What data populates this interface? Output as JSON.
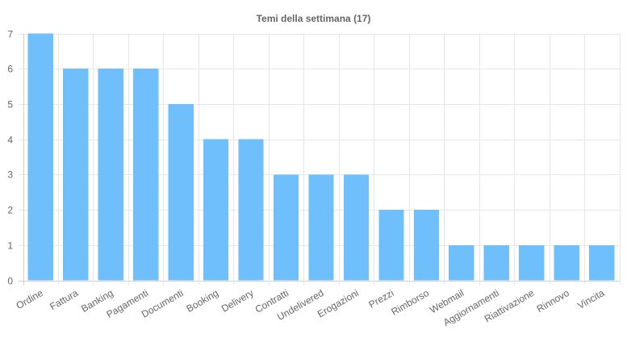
{
  "chart_data": {
    "type": "bar",
    "title": "Temi della settimana (17)",
    "xlabel": "",
    "ylabel": "",
    "categories": [
      "Ordine",
      "Fattura",
      "Banking",
      "Pagamenti",
      "Documenti",
      "Booking",
      "Delivery",
      "Contratti",
      "Undelivered",
      "Erogazioni",
      "Prezzi",
      "Rimborso",
      "Webmail",
      "Aggiornamenti",
      "Riattivazione",
      "Rinnovo",
      "Vincita"
    ],
    "values": [
      7,
      6,
      6,
      6,
      5,
      4,
      4,
      3,
      3,
      3,
      2,
      2,
      1,
      1,
      1,
      1,
      1
    ],
    "ylim": [
      0,
      7
    ],
    "yticks": [
      "0",
      "1",
      "2",
      "3",
      "4",
      "5",
      "6",
      "7"
    ],
    "grid": true,
    "legend": "none",
    "bar_color": "#6ebffb",
    "x_tick_rotation_deg": -30
  }
}
